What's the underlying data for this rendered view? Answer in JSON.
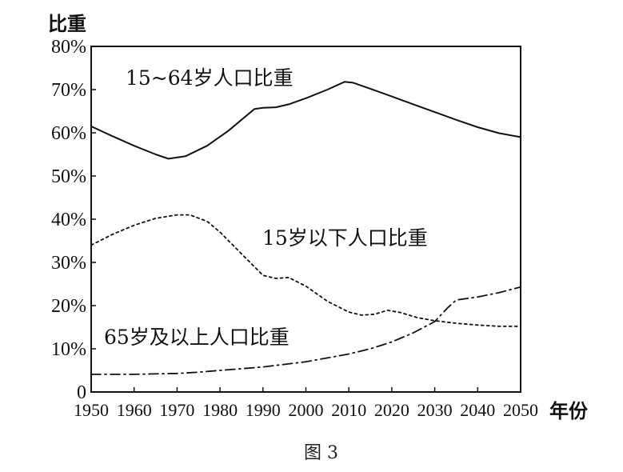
{
  "chart_data": {
    "type": "line",
    "ylabel": "比重",
    "xlabel": "年份",
    "caption": "图 3",
    "ylim": [
      0,
      80
    ],
    "xlim": [
      1950,
      2050
    ],
    "y_ticks": [
      "0",
      "10%",
      "20%",
      "30%",
      "40%",
      "50%",
      "60%",
      "70%",
      "80%"
    ],
    "x_ticks": [
      "1950",
      "1960",
      "1970",
      "1980",
      "1990",
      "2000",
      "2010",
      "2020",
      "2030",
      "2040",
      "2050"
    ],
    "grid": false,
    "series": [
      {
        "name": "15~64岁人口比重",
        "style": "solid",
        "x": [
          1950,
          1955,
          1960,
          1965,
          1968,
          1972,
          1977,
          1982,
          1985,
          1988,
          1990,
          1993,
          1996,
          2000,
          2005,
          2009,
          2011,
          2015,
          2020,
          2025,
          2030,
          2035,
          2040,
          2045,
          2050
        ],
        "values": [
          61.5,
          59.2,
          57.0,
          55.0,
          54.0,
          54.6,
          57.0,
          60.5,
          63.0,
          65.5,
          65.8,
          65.9,
          66.6,
          68.0,
          70.0,
          71.8,
          71.6,
          70.2,
          68.4,
          66.6,
          64.8,
          63.0,
          61.3,
          59.9,
          59.0
        ]
      },
      {
        "name": "15岁以下人口比重",
        "style": "dotted",
        "x": [
          1950,
          1955,
          1960,
          1965,
          1970,
          1973,
          1977,
          1980,
          1983,
          1987,
          1990,
          1993,
          1996,
          2000,
          2005,
          2010,
          2013,
          2016,
          2019,
          2022,
          2026,
          2030,
          2035,
          2040,
          2045,
          2050
        ],
        "values": [
          34.0,
          36.5,
          38.6,
          40.2,
          41.0,
          41.0,
          39.5,
          37.0,
          34.0,
          30.0,
          27.0,
          26.3,
          26.5,
          24.5,
          21.0,
          18.5,
          17.8,
          18.0,
          18.9,
          18.4,
          17.2,
          16.5,
          15.9,
          15.5,
          15.2,
          15.2
        ]
      },
      {
        "name": "65岁及以上人口比重",
        "style": "dashdot",
        "x": [
          1950,
          1960,
          1970,
          1975,
          1980,
          1990,
          2000,
          2010,
          2015,
          2020,
          2025,
          2030,
          2033,
          2035,
          2040,
          2045,
          2050
        ],
        "values": [
          4.1,
          4.1,
          4.3,
          4.6,
          5.0,
          5.8,
          7.0,
          8.8,
          10.0,
          11.6,
          13.7,
          16.3,
          19.5,
          21.3,
          22.0,
          23.0,
          24.3
        ]
      }
    ]
  }
}
